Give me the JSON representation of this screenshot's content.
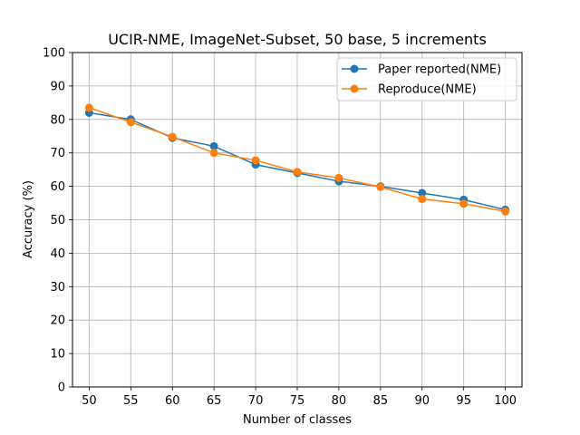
{
  "chart_data": {
    "type": "line",
    "title": "UCIR-NME, ImageNet-Subset, 50 base, 5 increments",
    "xlabel": "Number of classes",
    "ylabel": "Accuracy (%)",
    "x": [
      50,
      55,
      60,
      65,
      70,
      75,
      80,
      85,
      90,
      95,
      100
    ],
    "xlim": [
      48,
      102
    ],
    "ylim": [
      0,
      100
    ],
    "xticks": [
      "50",
      "55",
      "60",
      "65",
      "70",
      "75",
      "80",
      "85",
      "90",
      "95",
      "100"
    ],
    "yticks": [
      "0",
      "10",
      "20",
      "30",
      "40",
      "50",
      "60",
      "70",
      "80",
      "90",
      "100"
    ],
    "grid": true,
    "legend_position": "top-right",
    "series": [
      {
        "name": "Paper reported(NME)",
        "color": "#1f77b4",
        "values": [
          82.0,
          80.0,
          74.5,
          72.0,
          66.5,
          64.0,
          61.5,
          60.0,
          58.0,
          56.0,
          53.0
        ]
      },
      {
        "name": "Reproduce(NME)",
        "color": "#ff7f0e",
        "values": [
          83.5,
          79.2,
          74.8,
          70.0,
          67.8,
          64.3,
          62.5,
          59.8,
          56.2,
          54.8,
          52.5
        ]
      }
    ]
  }
}
